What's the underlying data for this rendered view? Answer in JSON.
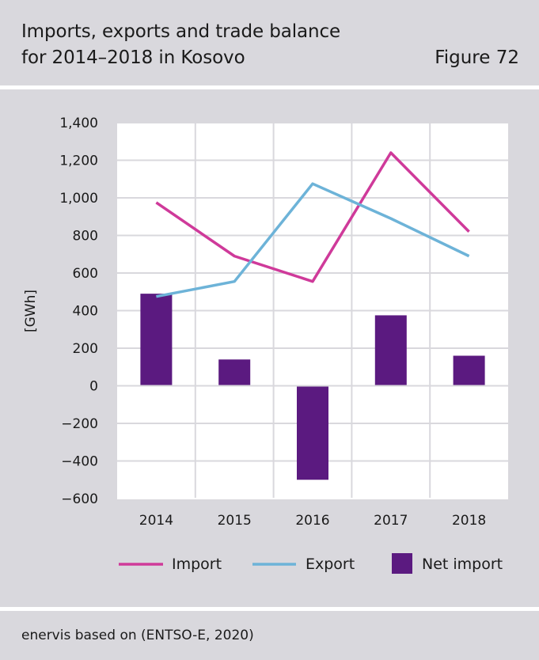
{
  "header": {
    "title_line1": "Imports, exports and trade balance",
    "title_line2": "for 2014–2018 in Kosovo",
    "figure_label": "Figure 72"
  },
  "footer": {
    "source": "enervis based on (ENTSO-E, 2020)"
  },
  "chart_data": {
    "type": "bar",
    "categories": [
      "2014",
      "2015",
      "2016",
      "2017",
      "2018"
    ],
    "series": [
      {
        "name": "Import",
        "kind": "line",
        "color": "#cf3a9a",
        "values": [
          975,
          690,
          555,
          1240,
          820
        ]
      },
      {
        "name": "Export",
        "kind": "line",
        "color": "#6db3d8",
        "values": [
          475,
          555,
          1075,
          890,
          690
        ]
      },
      {
        "name": "Net import",
        "kind": "bar",
        "color": "#5b1a80",
        "values": [
          490,
          140,
          -500,
          375,
          160
        ]
      }
    ],
    "ylabel": "[GWh]",
    "ylim": [
      -600,
      1400
    ],
    "yticks": [
      1400,
      1200,
      1000,
      800,
      600,
      400,
      200,
      0,
      -200,
      -400,
      -600
    ],
    "ytick_labels": [
      "1,400",
      "1,200",
      "1,000",
      "800",
      "600",
      "400",
      "200",
      "0",
      "−200",
      "−400",
      "−600"
    ],
    "grid": true,
    "legend_position": "bottom"
  }
}
